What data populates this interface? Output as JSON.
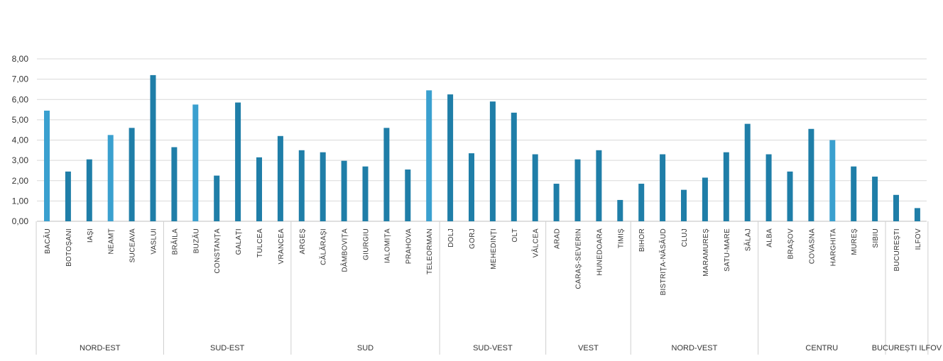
{
  "chart_data": {
    "type": "bar",
    "ylim": [
      0,
      8
    ],
    "yticks": [
      "0,00",
      "1,00",
      "2,00",
      "3,00",
      "4,00",
      "5,00",
      "6,00",
      "7,00",
      "8,00"
    ],
    "grid": true,
    "bar_color": "#1f7ea8",
    "highlight_color": "#3aa0cf",
    "categories": [
      "BACĂU",
      "BOTOȘANI",
      "IAȘI",
      "NEAMȚ",
      "SUCEAVA",
      "VASLUI",
      "BRĂILA",
      "BUZĂU",
      "CONSTANȚA",
      "GALAȚI",
      "TULCEA",
      "VRANCEA",
      "ARGEȘ",
      "CĂLĂRAȘI",
      "DÂMBOVIȚA",
      "GIURGIU",
      "IALOMIȚA",
      "PRAHOVA",
      "TELEORMAN",
      "DOLJ",
      "GORJ",
      "MEHEDINȚI",
      "OLT",
      "VÂLCEA",
      "ARAD",
      "CARAȘ-SEVERIN",
      "HUNEDOARA",
      "TIMIȘ",
      "BIHOR",
      "BISTRIȚA-NĂSĂUD",
      "CLUJ",
      "MARAMUREȘ",
      "SATU-MARE",
      "SĂLAJ",
      "ALBA",
      "BRAȘOV",
      "COVASNA",
      "HARGHITA",
      "MUREȘ",
      "SIBIU",
      "BUCUREȘTI",
      "ILFOV"
    ],
    "values": [
      5.45,
      2.45,
      3.05,
      4.25,
      4.6,
      7.2,
      3.65,
      5.75,
      2.25,
      5.85,
      3.15,
      4.2,
      3.5,
      3.4,
      2.98,
      2.7,
      4.6,
      2.55,
      6.45,
      6.25,
      3.35,
      5.9,
      5.35,
      3.3,
      1.85,
      3.05,
      3.5,
      1.05,
      1.85,
      3.3,
      1.55,
      2.15,
      3.4,
      4.8,
      3.3,
      2.45,
      4.55,
      4.0,
      2.7,
      2.2,
      1.3,
      0.65
    ],
    "highlighted": [
      "BACĂU",
      "NEAMȚ",
      "BUZĂU",
      "TELEORMAN",
      "HARGHITA"
    ],
    "regions": [
      {
        "name": "NORD-EST",
        "count": 6
      },
      {
        "name": "SUD-EST",
        "count": 6
      },
      {
        "name": "SUD",
        "count": 7
      },
      {
        "name": "SUD-VEST",
        "count": 5
      },
      {
        "name": "VEST",
        "count": 4
      },
      {
        "name": "NORD-VEST",
        "count": 6
      },
      {
        "name": "CENTRU",
        "count": 6
      },
      {
        "name": "BUCUREȘTI ILFOV",
        "count": 2
      }
    ]
  }
}
